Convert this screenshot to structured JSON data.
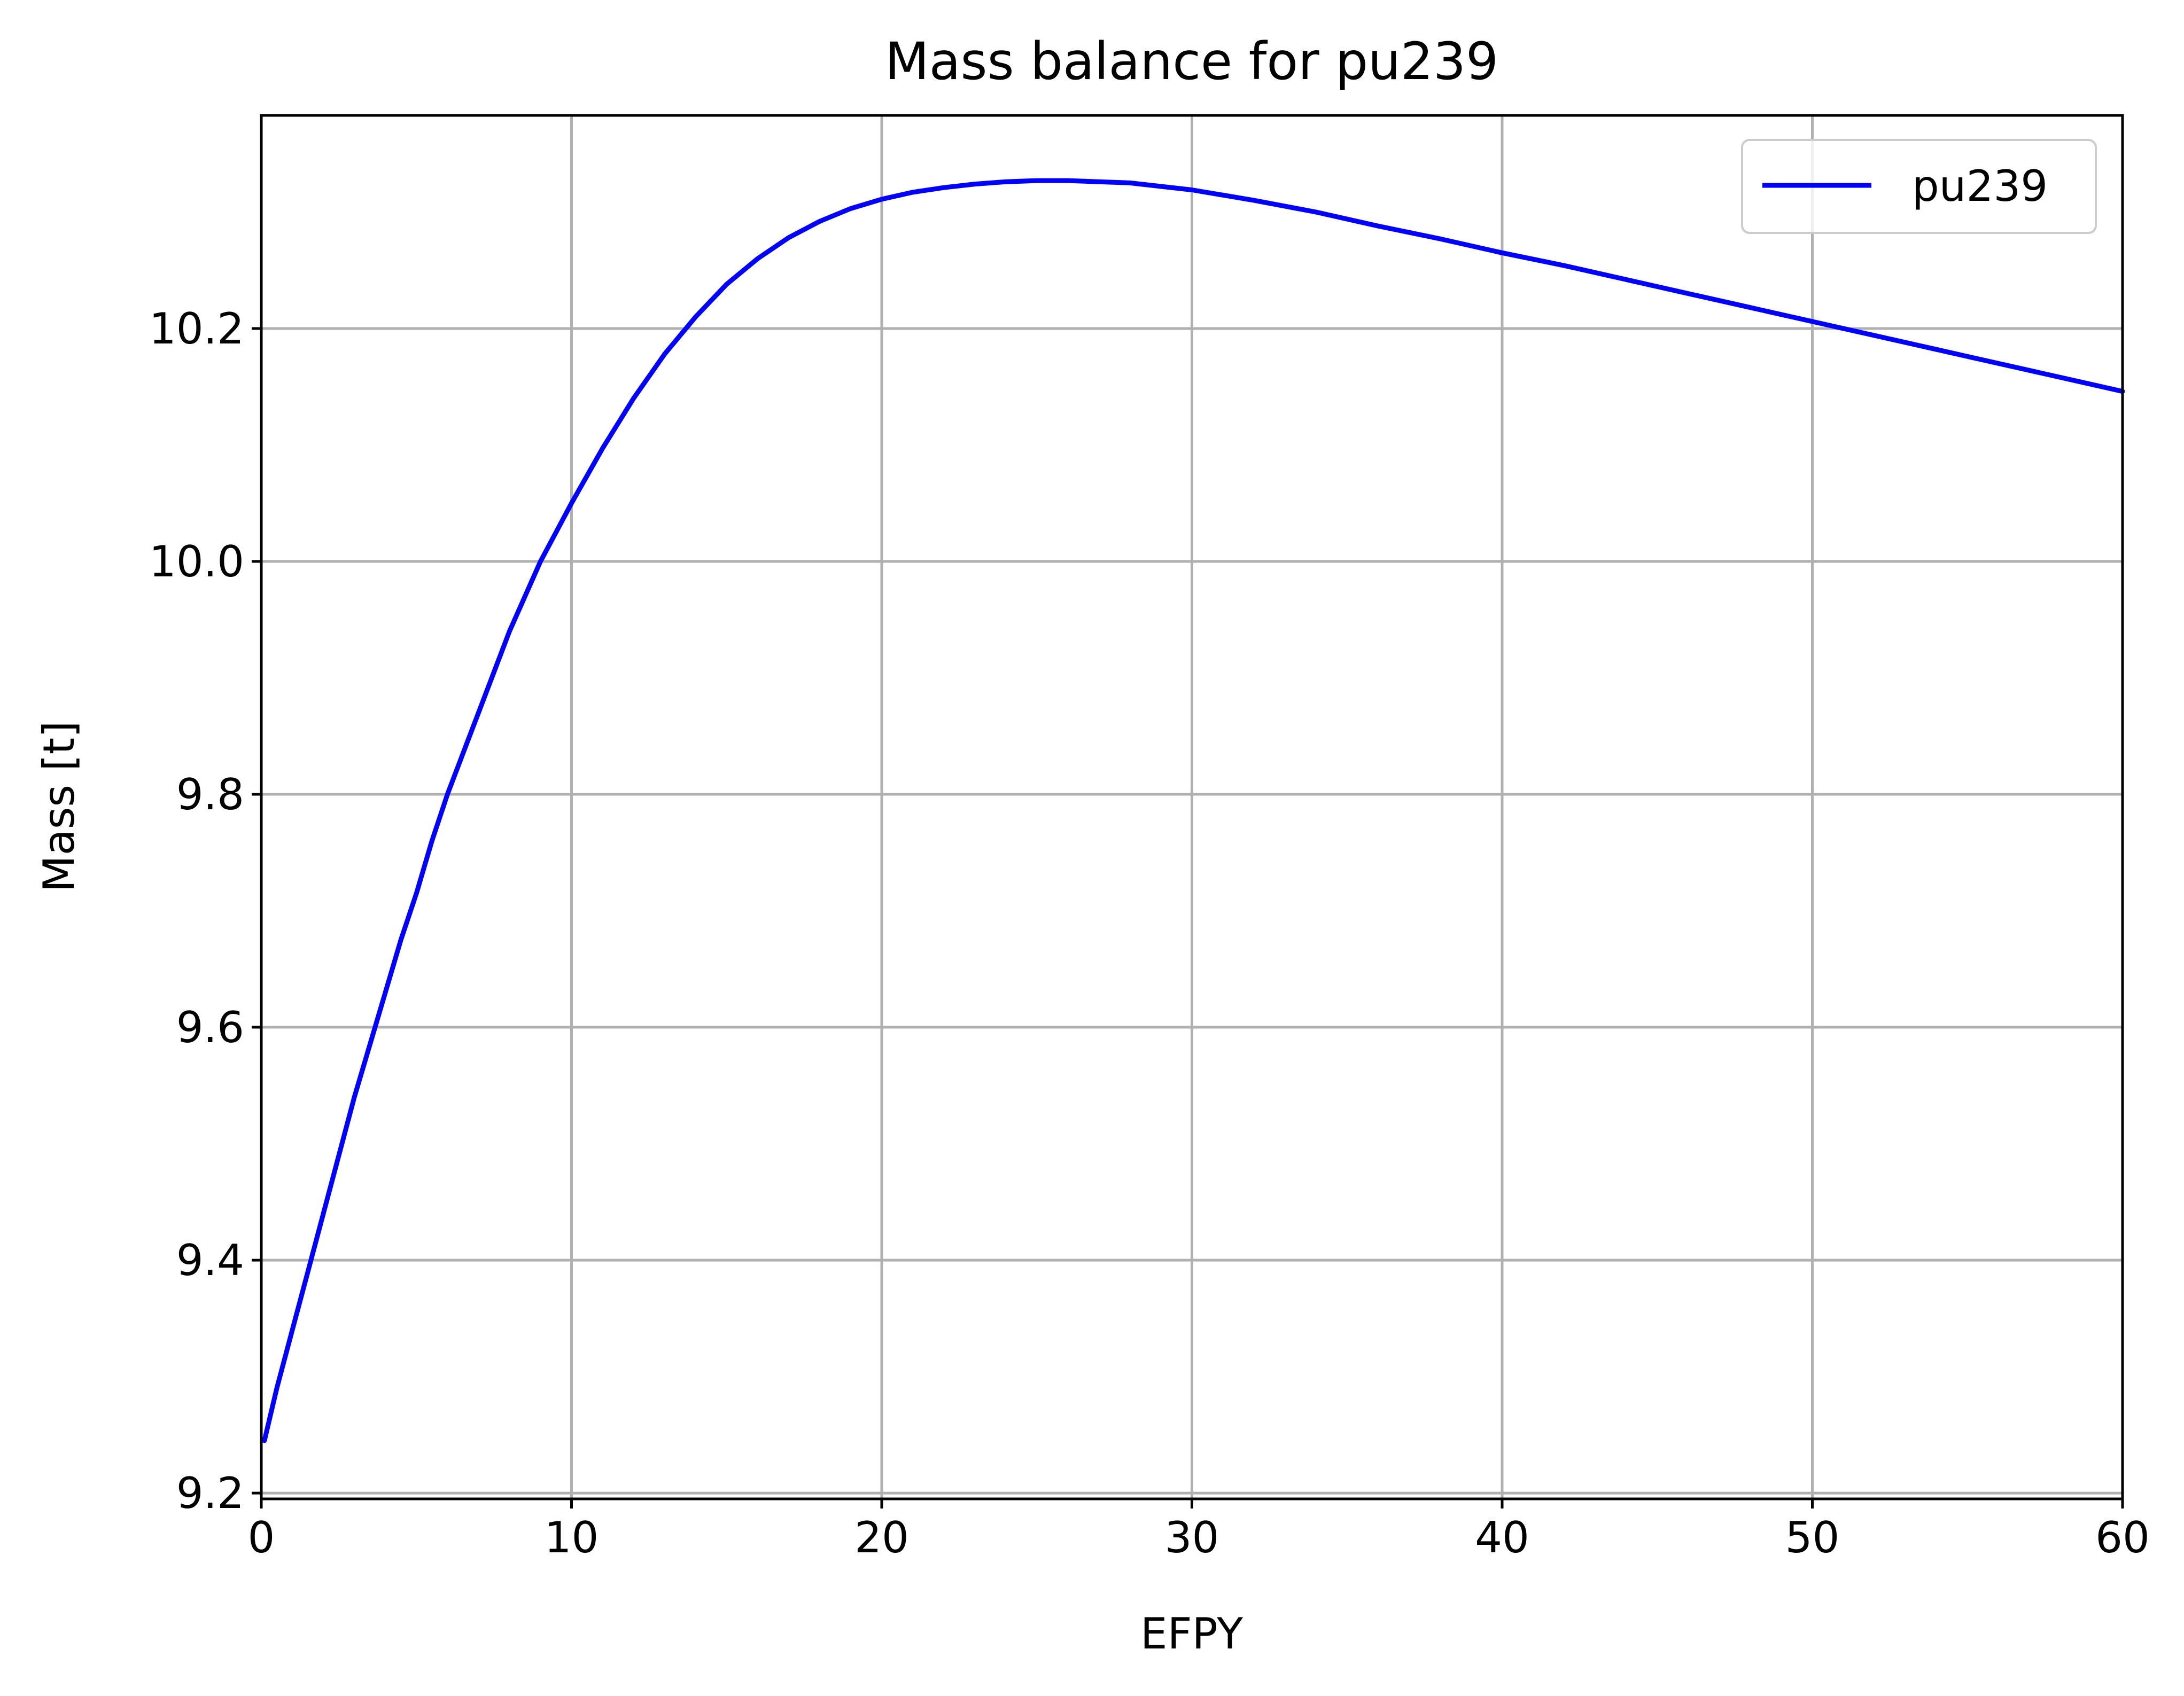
{
  "chart_data": {
    "type": "line",
    "title": "Mass balance for pu239",
    "xlabel": "EFPY",
    "ylabel": "Mass [t]",
    "xlim": [
      0,
      60
    ],
    "ylim": [
      9.195,
      10.383
    ],
    "xticks": [
      0,
      10,
      20,
      30,
      40,
      50,
      60
    ],
    "yticks": [
      9.2,
      9.4,
      9.6,
      9.8,
      10.0,
      10.2
    ],
    "xtick_labels": [
      "0",
      "10",
      "20",
      "30",
      "40",
      "50",
      "60"
    ],
    "ytick_labels": [
      "9.2",
      "9.4",
      "9.6",
      "9.8",
      "10.0",
      "10.2"
    ],
    "grid": true,
    "legend_position": "top-right",
    "series": [
      {
        "name": "pu239",
        "color": "#0000ff",
        "x": [
          0.1,
          0.5,
          1,
          1.5,
          2,
          2.5,
          3,
          3.5,
          4,
          4.5,
          5,
          5.5,
          6,
          6.5,
          7,
          7.5,
          8,
          8.5,
          9,
          9.5,
          10,
          11,
          12,
          13,
          14,
          15,
          16,
          17,
          18,
          19,
          20,
          21,
          22,
          23,
          24,
          25,
          26,
          27,
          28,
          30,
          32,
          34,
          36,
          38,
          40,
          42,
          44,
          46,
          48,
          50,
          52,
          54,
          56,
          58,
          60
        ],
        "y": [
          9.245,
          9.29,
          9.34,
          9.39,
          9.44,
          9.49,
          9.54,
          9.585,
          9.63,
          9.675,
          9.715,
          9.76,
          9.8,
          9.835,
          9.87,
          9.905,
          9.94,
          9.97,
          10.0,
          10.025,
          10.05,
          10.097,
          10.14,
          10.178,
          10.21,
          10.238,
          10.26,
          10.278,
          10.292,
          10.303,
          10.311,
          10.317,
          10.321,
          10.324,
          10.326,
          10.327,
          10.327,
          10.326,
          10.325,
          10.319,
          10.31,
          10.3,
          10.288,
          10.277,
          10.265,
          10.254,
          10.242,
          10.23,
          10.218,
          10.206,
          10.194,
          10.182,
          10.17,
          10.158,
          10.146
        ]
      }
    ]
  }
}
